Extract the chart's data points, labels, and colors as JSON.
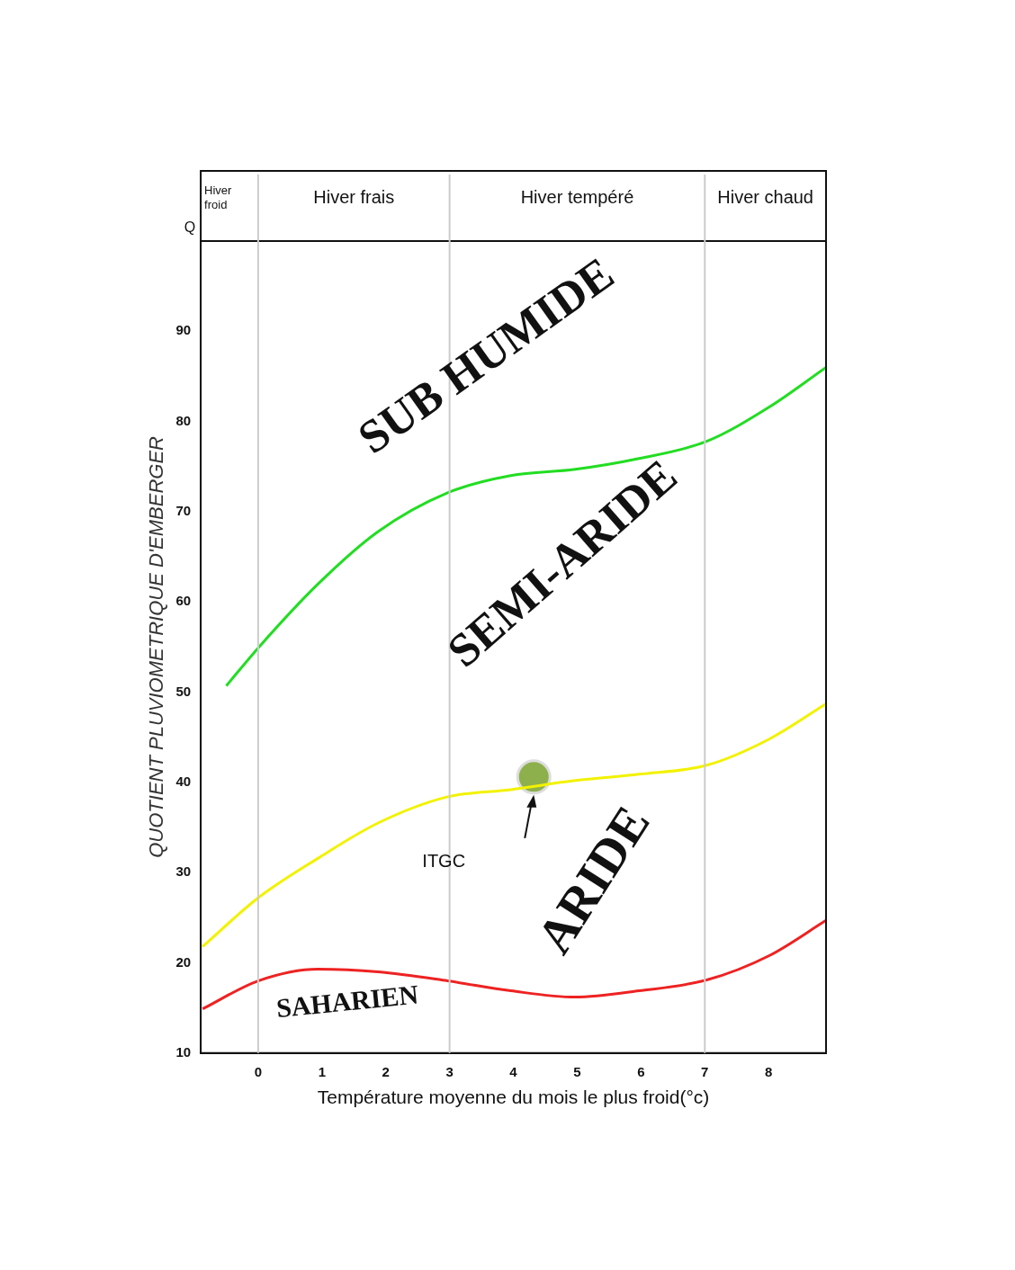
{
  "chart_data": {
    "type": "line",
    "xlabel": "Température moyenne du mois le plus froid(°c)",
    "ylabel": "QUOTIENT PLUVIOMETRIQUE D'EMBERGER",
    "xlim": [
      -0.9,
      8.9
    ],
    "xticks": [
      0,
      1,
      2,
      3,
      4,
      5,
      6,
      7,
      8
    ],
    "ylim": [
      10,
      100
    ],
    "yticks": [
      10,
      20,
      30,
      40,
      50,
      60,
      70,
      80,
      90
    ],
    "grid": false,
    "legend": false,
    "marker": "none",
    "line_style": "solid",
    "ref_lines": [
      {
        "axis": "x",
        "value": 0,
        "color": "#cccccc"
      },
      {
        "axis": "x",
        "value": 3,
        "color": "#cccccc"
      },
      {
        "axis": "x",
        "value": 7,
        "color": "#cccccc"
      }
    ],
    "series": [
      {
        "color": "#22dd22",
        "x": [
          -0.5,
          0,
          0.94,
          1.88,
          2.97,
          3.96,
          4.97,
          5.97,
          7.03,
          8.01,
          8.9
        ],
        "values": [
          50.7,
          54.9,
          62,
          67.8,
          72.1,
          74,
          74.7,
          75.9,
          77.8,
          81.6,
          86
        ]
      },
      {
        "color": "#f2f200",
        "x": [
          -0.87,
          0,
          0.94,
          1.88,
          2.97,
          3.96,
          4.97,
          5.97,
          7.03,
          8.01,
          8.9
        ],
        "values": [
          21.8,
          27.2,
          31.6,
          35.5,
          38.4,
          39.2,
          40.2,
          40.9,
          41.9,
          44.8,
          48.7
        ]
      },
      {
        "color": "#ee2222",
        "x": [
          -0.87,
          0,
          0.94,
          1.88,
          2.97,
          3.96,
          4.97,
          5.97,
          7.03,
          8.01,
          8.9
        ],
        "values": [
          14.9,
          18,
          19.3,
          19,
          18,
          16.9,
          16.2,
          16.9,
          18.1,
          20.8,
          24.7
        ]
      },
      {
        "type": "scatter",
        "name": "ITGC",
        "color": "#8db04c",
        "marker": "circle",
        "x": [
          4.32
        ],
        "values": [
          40.6
        ]
      }
    ],
    "annotations": [
      "Q",
      "Hiver froid",
      "Hiver frais",
      "Hiver tempéré",
      "Hiver chaud",
      "SUB HUMIDE",
      "SEMI-ARIDE",
      "ARIDE",
      "SAHARIEN"
    ]
  }
}
